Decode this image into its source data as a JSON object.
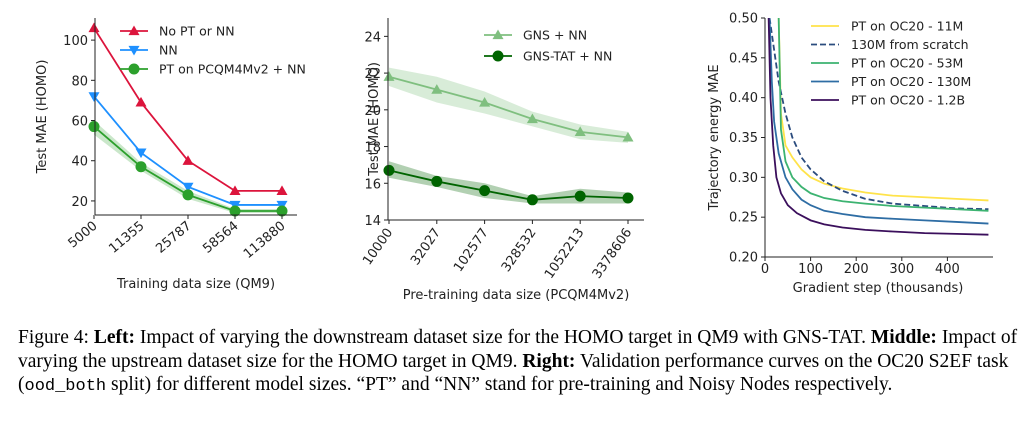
{
  "chart_data": [
    {
      "type": "line",
      "xlabel": "Training data size (QM9)",
      "ylabel": "Test MAE (HOMO)",
      "categories": [
        "5000",
        "11355",
        "25787",
        "58564",
        "113880"
      ],
      "yticks": [
        20,
        40,
        60,
        80,
        100
      ],
      "ylim": [
        13,
        111
      ],
      "grid": false,
      "legend": "top-right",
      "series": [
        {
          "name": "No PT or NN",
          "values": [
            106,
            69,
            40,
            25,
            25
          ],
          "color": "#dc143c",
          "marker": "triangle-up"
        },
        {
          "name": "NN",
          "values": [
            72,
            44,
            27,
            18,
            18
          ],
          "color": "#1e90ff",
          "marker": "triangle-down"
        },
        {
          "name": "PT on PCQM4Mv2 + NN",
          "values": [
            57,
            37,
            23,
            15,
            15
          ],
          "color": "#2ca02c",
          "marker": "circle",
          "band": [
            [
              53,
              60
            ],
            [
              35,
              39
            ],
            [
              21,
              25
            ],
            [
              14,
              16
            ],
            [
              14,
              16
            ]
          ]
        }
      ]
    },
    {
      "type": "line",
      "xlabel": "Pre-training data size (PCQM4Mv2)",
      "ylabel": "Test MAE (HOMO)",
      "categories": [
        "10000",
        "32027",
        "102577",
        "328532",
        "1052213",
        "3378606"
      ],
      "yticks": [
        14,
        16,
        18,
        20,
        22,
        24
      ],
      "ylim": [
        14,
        25
      ],
      "grid": false,
      "legend": "top-right",
      "series": [
        {
          "name": "GNS + NN",
          "values": [
            21.8,
            21.1,
            20.4,
            19.5,
            18.8,
            18.5
          ],
          "color": "#7fbf7f",
          "marker": "triangle-up",
          "band": [
            [
              21.3,
              22.3
            ],
            [
              20.4,
              21.8
            ],
            [
              19.8,
              21.0
            ],
            [
              19.1,
              19.9
            ],
            [
              18.4,
              19.2
            ],
            [
              18.2,
              18.8
            ]
          ]
        },
        {
          "name": "GNS-TAT + NN",
          "values": [
            16.7,
            16.1,
            15.6,
            15.1,
            15.3,
            15.2
          ],
          "color": "#006400",
          "marker": "circle",
          "band": [
            [
              16.3,
              17.2
            ],
            [
              15.8,
              16.4
            ],
            [
              15.2,
              16.0
            ],
            [
              14.9,
              15.3
            ],
            [
              14.9,
              15.7
            ],
            [
              14.9,
              15.5
            ]
          ]
        }
      ]
    },
    {
      "type": "line",
      "xlabel": "Gradient step (thousands)",
      "ylabel": "Trajectory energy MAE",
      "xticks": [
        0,
        100,
        200,
        300,
        400
      ],
      "yticks": [
        0.2,
        0.25,
        0.3,
        0.35,
        0.4,
        0.45,
        0.5
      ],
      "ytick_labels": [
        "0.20",
        "0.25",
        "0.30",
        "0.35",
        "0.40",
        "0.45",
        "0.50"
      ],
      "xlim": [
        0,
        500
      ],
      "ylim": [
        0.2,
        0.5
      ],
      "grid": false,
      "legend": "top-right",
      "series": [
        {
          "name": "PT on OC20 - 11M",
          "color": "#ffe34a",
          "dash": false,
          "x": [
            30,
            35,
            45,
            60,
            80,
            100,
            130,
            170,
            220,
            280,
            350,
            420,
            490
          ],
          "y": [
            0.5,
            0.38,
            0.34,
            0.325,
            0.31,
            0.3,
            0.292,
            0.286,
            0.281,
            0.277,
            0.275,
            0.273,
            0.271
          ]
        },
        {
          "name": "130M from scratch",
          "color": "#2b4c7e",
          "dash": true,
          "x": [
            10,
            20,
            30,
            45,
            60,
            80,
            100,
            130,
            170,
            220,
            280,
            350,
            420,
            490
          ],
          "y": [
            0.5,
            0.46,
            0.42,
            0.38,
            0.35,
            0.325,
            0.31,
            0.295,
            0.283,
            0.273,
            0.267,
            0.264,
            0.261,
            0.26
          ]
        },
        {
          "name": "PT on OC20 - 53M",
          "color": "#3cb371",
          "dash": false,
          "x": [
            30,
            35,
            45,
            60,
            80,
            100,
            130,
            170,
            220,
            280,
            350,
            420,
            490
          ],
          "y": [
            0.5,
            0.36,
            0.32,
            0.3,
            0.288,
            0.28,
            0.274,
            0.27,
            0.267,
            0.264,
            0.262,
            0.26,
            0.258
          ]
        },
        {
          "name": "PT on OC20 - 130M",
          "color": "#2e6da4",
          "dash": false,
          "x": [
            10,
            15,
            20,
            30,
            45,
            60,
            80,
            100,
            130,
            170,
            220,
            280,
            350,
            420,
            490
          ],
          "y": [
            0.5,
            0.42,
            0.37,
            0.33,
            0.3,
            0.285,
            0.272,
            0.265,
            0.258,
            0.254,
            0.25,
            0.248,
            0.246,
            0.244,
            0.242
          ]
        },
        {
          "name": "PT on OC20 - 1.2B",
          "color": "#3b0f5c",
          "dash": false,
          "x": [
            8,
            12,
            18,
            25,
            35,
            50,
            70,
            100,
            130,
            170,
            220,
            280,
            350,
            420,
            490
          ],
          "y": [
            0.5,
            0.4,
            0.34,
            0.3,
            0.28,
            0.265,
            0.255,
            0.246,
            0.241,
            0.237,
            0.234,
            0.232,
            0.23,
            0.229,
            0.228
          ]
        }
      ]
    }
  ],
  "caption": {
    "fig_label": "Figure 4: ",
    "left_label": "Left:",
    "left_text": " Impact of varying the downstream dataset size for the HOMO target in QM9 with GNS-TAT. ",
    "middle_label": "Middle:",
    "middle_text": " Impact of varying the upstream dataset size for the HOMO target in QM9. ",
    "right_label": "Right:",
    "right_text_1": " Validation performance curves on the OC20 S2EF task (",
    "split_name": "ood_both",
    "right_text_2": " split) for different model sizes. “PT” and “NN” stand for pre-training and Noisy Nodes respectively."
  }
}
